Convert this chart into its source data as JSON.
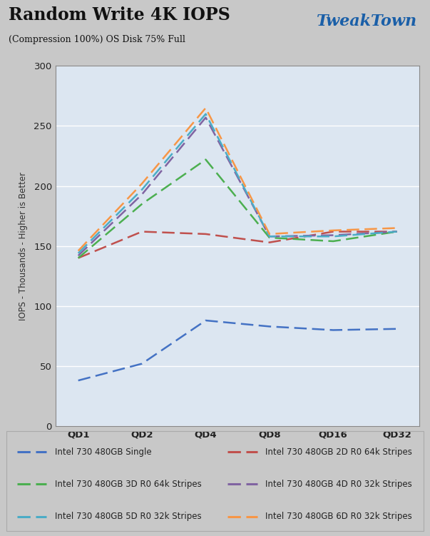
{
  "title": "Random Write 4K IOPS",
  "subtitle": "(Compression 100%) OS Disk 75% Full",
  "ylabel": "IOPS - Thousands - Higher is Better",
  "xticklabels": [
    "QD1",
    "QD2",
    "QD4",
    "QD8",
    "QD16",
    "QD32"
  ],
  "x_positions": [
    0,
    1,
    2,
    3,
    4,
    5
  ],
  "ylim": [
    0,
    300
  ],
  "yticks": [
    0,
    50,
    100,
    150,
    200,
    250,
    300
  ],
  "series": [
    {
      "label": "Intel 730 480GB Single",
      "color": "#4472C4",
      "values": [
        38,
        52,
        88,
        83,
        80,
        81
      ]
    },
    {
      "label": "Intel 730 480GB 2D R0 64k Stripes",
      "color": "#C0504D",
      "values": [
        140,
        162,
        160,
        153,
        162,
        162
      ]
    },
    {
      "label": "Intel 730 480GB 3D R0 64k Stripes",
      "color": "#4CAF50",
      "values": [
        140,
        185,
        222,
        157,
        154,
        162
      ]
    },
    {
      "label": "Intel 730 480GB 4D R0 32k Stripes",
      "color": "#8064A2",
      "values": [
        142,
        193,
        257,
        158,
        159,
        162
      ]
    },
    {
      "label": "Intel 730 480GB 5D R0 32k Stripes",
      "color": "#4BACC6",
      "values": [
        144,
        197,
        260,
        158,
        158,
        162
      ]
    },
    {
      "label": "Intel 730 480GB 6D R0 32k Stripes",
      "color": "#F79646",
      "values": [
        146,
        202,
        265,
        160,
        163,
        165
      ]
    }
  ],
  "bg_color": "#dce6f1",
  "outer_bg": "#c8c8c8",
  "fig_bg": "#c8c8c8",
  "chart_area_bg": "#d0d8e8",
  "tweaktown_color": "#1a5fa8"
}
